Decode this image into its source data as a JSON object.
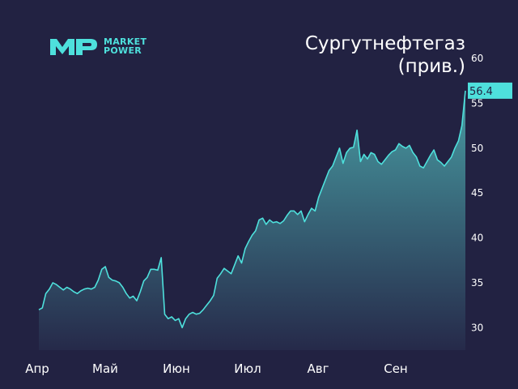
{
  "logo": {
    "line1": "MARKET",
    "line2": "POWER"
  },
  "colors": {
    "background": "#222242",
    "line": "#4ee0dc",
    "fill_top": "#4aa3a8",
    "fill_bottom": "#262a4a",
    "text": "#ffffff"
  },
  "chart_data": {
    "type": "area",
    "title_lines": [
      "Сургутнефтегаз",
      "(прив.)"
    ],
    "x_ticks": [
      "Апр",
      "Май",
      "Июн",
      "Июл",
      "Авг",
      "Сен"
    ],
    "y_ticks": [
      30,
      35,
      40,
      45,
      50,
      55,
      60
    ],
    "ylim": [
      27.5,
      60
    ],
    "y_axis_side": "right",
    "grid": false,
    "last_value_label": "56.4",
    "series": [
      {
        "values": [
          32.0,
          32.2,
          33.8,
          34.3,
          35.0,
          34.8,
          34.5,
          34.2,
          34.5,
          34.3,
          34.0,
          33.8,
          34.1,
          34.3,
          34.4,
          34.3,
          34.5,
          35.3,
          36.5,
          36.8,
          35.6,
          35.3,
          35.2,
          35.0,
          34.5,
          33.8,
          33.3,
          33.5,
          33.0,
          34.0,
          35.2,
          35.6,
          36.5,
          36.5,
          36.4,
          37.8,
          31.5,
          31.0,
          31.2,
          30.8,
          31.0,
          30.0,
          31.0,
          31.5,
          31.7,
          31.5,
          31.6,
          32.0,
          32.5,
          33.0,
          33.6,
          35.5,
          36.0,
          36.6,
          36.3,
          36.0,
          37.0,
          38.0,
          37.2,
          38.8,
          39.6,
          40.3,
          40.8,
          42.0,
          42.2,
          41.5,
          42.0,
          41.7,
          41.8,
          41.6,
          41.9,
          42.5,
          43.0,
          43.0,
          42.6,
          43.0,
          41.8,
          42.6,
          43.3,
          43.0,
          44.5,
          45.5,
          46.5,
          47.5,
          48.0,
          49.0,
          50.0,
          48.3,
          49.5,
          50.0,
          50.1,
          52.0,
          48.5,
          49.3,
          48.8,
          49.5,
          49.3,
          48.5,
          48.2,
          48.7,
          49.2,
          49.6,
          49.8,
          50.5,
          50.2,
          50.0,
          50.3,
          49.5,
          49.0,
          48.0,
          47.8,
          48.5,
          49.2,
          49.8,
          48.7,
          48.4,
          48.0,
          48.5,
          49.0,
          50.0,
          50.8,
          52.5,
          56.4
        ]
      }
    ]
  }
}
